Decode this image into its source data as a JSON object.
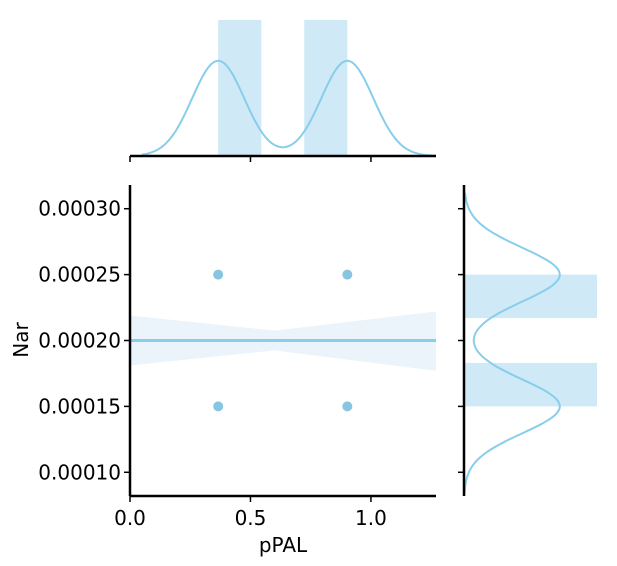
{
  "chart_data": {
    "type": "jointplot",
    "xlabel": "pPAL",
    "ylabel": "Nar",
    "xlim": [
      0.0,
      1.27
    ],
    "ylim": [
      8.2e-05,
      0.000318
    ],
    "xticks": [
      0.0,
      0.5,
      1.0
    ],
    "xtick_labels": [
      "0.0",
      "0.5",
      "1.0"
    ],
    "yticks": [
      0.0001,
      0.00015,
      0.0002,
      0.00025,
      0.0003
    ],
    "ytick_labels": [
      "0.00010",
      "0.00015",
      "0.00020",
      "0.00025",
      "0.00030"
    ],
    "points": [
      {
        "x": 0.366,
        "y": 0.00025
      },
      {
        "x": 0.902,
        "y": 0.00025
      },
      {
        "x": 0.366,
        "y": 0.00015
      },
      {
        "x": 0.902,
        "y": 0.00015
      }
    ],
    "regression": {
      "x_range": [
        0.0,
        1.27
      ],
      "intercept": 0.0002,
      "slope": 0.0,
      "ci_left": [
        0.000181,
        0.000219
      ],
      "ci_right": [
        0.000177,
        0.000222
      ],
      "ci_narrow_at": 0.6
    },
    "marginal_x": {
      "hist_bins": [
        {
          "x0": 0.366,
          "x1": 0.545,
          "height": 1.0
        },
        {
          "x0": 0.545,
          "x1": 0.723,
          "height": 0.0
        },
        {
          "x0": 0.723,
          "x1": 0.902,
          "height": 1.0
        }
      ],
      "kde_range": [
        0.05,
        1.27
      ],
      "kde_centers": [
        0.366,
        0.902
      ],
      "kde_bandwidth": 0.108,
      "kde_peak": 0.7
    },
    "marginal_y": {
      "hist_bins": [
        {
          "y0": 0.00015,
          "y1": 0.000183,
          "height": 1.0
        },
        {
          "y0": 0.000183,
          "y1": 0.000217,
          "height": 0.0
        },
        {
          "y0": 0.000217,
          "y1": 0.00025,
          "height": 1.0
        }
      ],
      "kde_range": [
        8.2e-05,
        0.000312
      ],
      "kde_centers": [
        0.00015,
        0.00025
      ],
      "kde_bandwidth": 2.05e-05,
      "kde_peak": 0.72
    },
    "colors": {
      "main": "#87ceeb",
      "point": "#87c5e0",
      "band": "#eaf4fa",
      "hist": "#d0e9f6",
      "axis": "#000000"
    }
  }
}
